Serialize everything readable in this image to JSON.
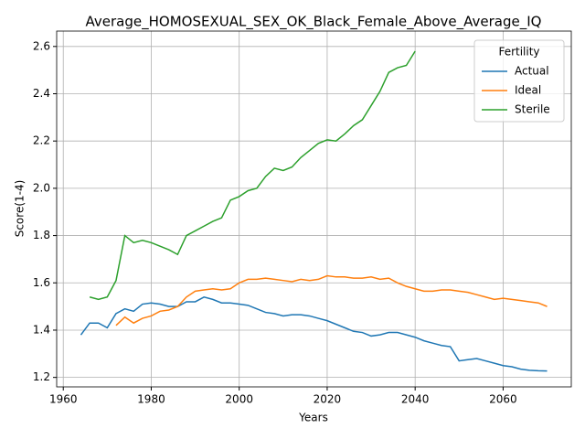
{
  "chart_data": {
    "type": "line",
    "title": "Average_HOMOSEXUAL_SEX_OK_Black_Female_Above_Average_IQ",
    "x_label": "Years",
    "y_label": "Score(1-4)",
    "legend_title": "Fertility",
    "legend": "upper right",
    "grid": true,
    "x": [
      1964,
      1966,
      1968,
      1970,
      1972,
      1974,
      1976,
      1978,
      1980,
      1982,
      1984,
      1986,
      1988,
      1990,
      1992,
      1994,
      1996,
      1998,
      2000,
      2002,
      2004,
      2006,
      2008,
      2010,
      2012,
      2014,
      2016,
      2018,
      2020,
      2022,
      2024,
      2026,
      2028,
      2030,
      2032,
      2034,
      2036,
      2038,
      2040,
      2042,
      2044,
      2046,
      2048,
      2050,
      2052,
      2054,
      2056,
      2058,
      2060,
      2062,
      2064,
      2066,
      2068,
      2070
    ],
    "series": [
      {
        "name": "Actual",
        "color": "#1f77b4",
        "values": [
          1.38,
          1.43,
          1.43,
          1.41,
          1.47,
          1.49,
          1.48,
          1.51,
          1.515,
          1.51,
          1.5,
          1.5,
          1.52,
          1.52,
          1.54,
          1.53,
          1.515,
          1.515,
          1.51,
          1.505,
          1.49,
          1.475,
          1.47,
          1.46,
          1.465,
          1.465,
          1.46,
          1.45,
          1.44,
          1.425,
          1.41,
          1.395,
          1.39,
          1.375,
          1.38,
          1.39,
          1.39,
          1.38,
          1.37,
          1.355,
          1.345,
          1.335,
          1.33,
          1.27,
          1.275,
          1.28,
          1.27,
          1.26,
          1.25,
          1.245,
          1.235,
          1.23,
          1.228,
          1.227
        ]
      },
      {
        "name": "Ideal",
        "color": "#ff7f0e",
        "values": [
          null,
          null,
          null,
          null,
          1.42,
          1.455,
          1.43,
          1.45,
          1.46,
          1.48,
          1.485,
          1.5,
          1.54,
          1.565,
          1.57,
          1.575,
          1.57,
          1.575,
          1.6,
          1.615,
          1.615,
          1.62,
          1.615,
          1.61,
          1.605,
          1.615,
          1.61,
          1.615,
          1.63,
          1.625,
          1.625,
          1.62,
          1.62,
          1.625,
          1.615,
          1.62,
          1.6,
          1.585,
          1.575,
          1.565,
          1.565,
          1.57,
          1.57,
          1.565,
          1.56,
          1.55,
          1.54,
          1.53,
          1.535,
          1.53,
          1.525,
          1.52,
          1.515,
          1.5
        ]
      },
      {
        "name": "Sterile",
        "color": "#2ca02c",
        "values": [
          null,
          1.54,
          1.53,
          1.54,
          1.61,
          1.8,
          1.77,
          1.78,
          1.77,
          1.755,
          1.74,
          1.72,
          1.8,
          1.82,
          1.84,
          1.86,
          1.875,
          1.95,
          1.965,
          1.99,
          2.0,
          2.05,
          2.085,
          2.075,
          2.09,
          2.13,
          2.16,
          2.19,
          2.205,
          2.2,
          2.23,
          2.265,
          2.29,
          2.35,
          2.41,
          2.49,
          2.51,
          2.52,
          2.58,
          null,
          null,
          null,
          null,
          null,
          null,
          null,
          null,
          null,
          null,
          null,
          null,
          null,
          null,
          null
        ]
      }
    ],
    "xlim": [
      1958.5,
      2075.5
    ],
    "xticks": [
      1960,
      1980,
      2000,
      2020,
      2040,
      2060
    ],
    "ylim": [
      1.16,
      2.665
    ],
    "yticks": [
      1.2,
      1.4,
      1.6,
      1.8,
      {
        "value": 2,
        "label": "2.0"
      },
      2.2,
      2.4,
      2.6
    ]
  }
}
